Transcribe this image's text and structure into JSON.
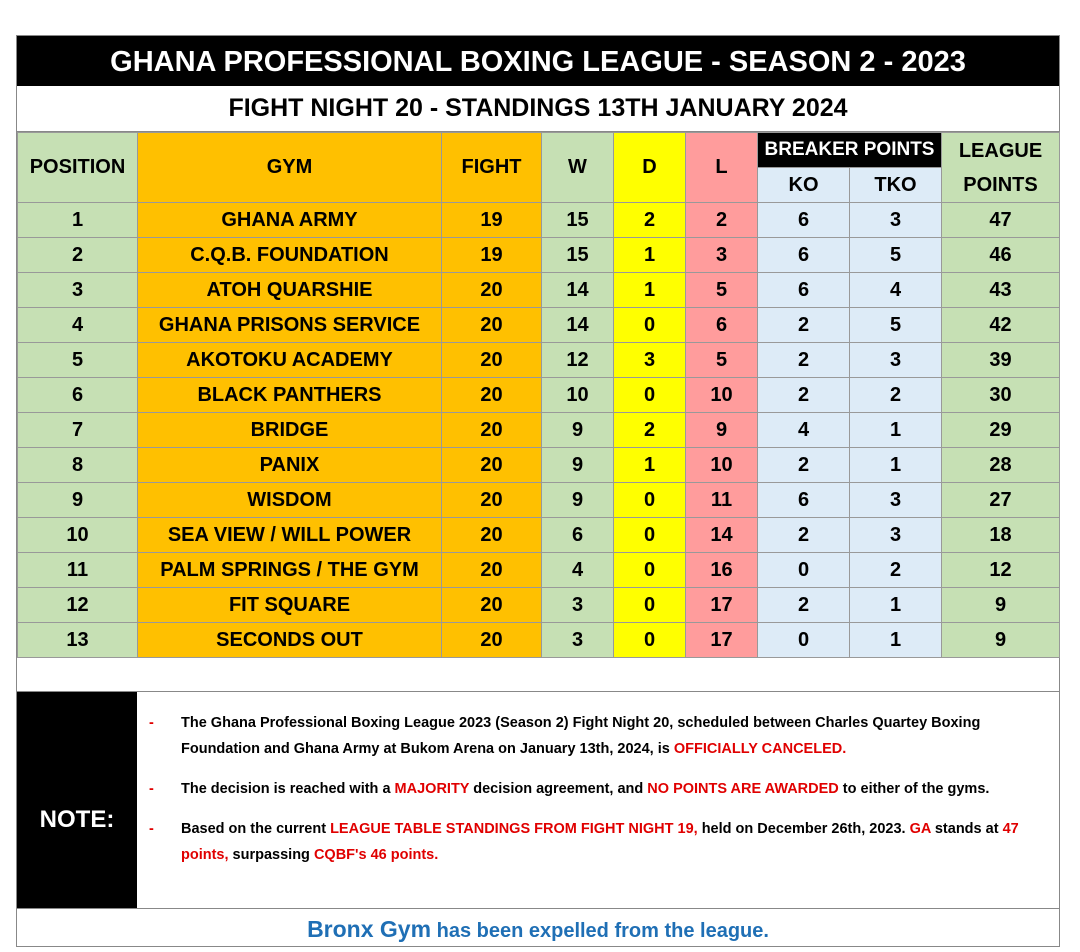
{
  "header": {
    "title": "GHANA PROFESSIONAL BOXING LEAGUE - SEASON 2 - 2023",
    "subtitle": "FIGHT NIGHT 20 - STANDINGS 13TH JANUARY 2024"
  },
  "table": {
    "columns": {
      "position": "POSITION",
      "gym": "GYM",
      "fight": "FIGHT",
      "w": "W",
      "d": "D",
      "l": "L",
      "breaker": "BREAKER POINTS",
      "ko": "KO",
      "tko": "TKO",
      "league": "LEAGUE POINTS"
    },
    "rows": [
      [
        1,
        "GHANA ARMY",
        19,
        15,
        2,
        2,
        6,
        3,
        47
      ],
      [
        2,
        "C.Q.B. FOUNDATION",
        19,
        15,
        1,
        3,
        6,
        5,
        46
      ],
      [
        3,
        "ATOH QUARSHIE",
        20,
        14,
        1,
        5,
        6,
        4,
        43
      ],
      [
        4,
        "GHANA PRISONS SERVICE",
        20,
        14,
        0,
        6,
        2,
        5,
        42
      ],
      [
        5,
        "AKOTOKU ACADEMY",
        20,
        12,
        3,
        5,
        2,
        3,
        39
      ],
      [
        6,
        "BLACK PANTHERS",
        20,
        10,
        0,
        10,
        2,
        2,
        30
      ],
      [
        7,
        "BRIDGE",
        20,
        9,
        2,
        9,
        4,
        1,
        29
      ],
      [
        8,
        "PANIX",
        20,
        9,
        1,
        10,
        2,
        1,
        28
      ],
      [
        9,
        "WISDOM",
        20,
        9,
        0,
        11,
        6,
        3,
        27
      ],
      [
        10,
        "SEA VIEW / WILL POWER",
        20,
        6,
        0,
        14,
        2,
        3,
        18
      ],
      [
        11,
        "PALM SPRINGS / THE GYM",
        20,
        4,
        0,
        16,
        0,
        2,
        12
      ],
      [
        12,
        "FIT SQUARE",
        20,
        3,
        0,
        17,
        2,
        1,
        9
      ],
      [
        13,
        "SECONDS OUT",
        20,
        3,
        0,
        17,
        0,
        1,
        9
      ]
    ]
  },
  "note": {
    "label": "NOTE:",
    "items": [
      [
        {
          "text": "The Ghana Professional Boxing League 2023 (Season 2) Fight Night 20, scheduled between Charles Quartey Boxing Foundation and Ghana Army at Bukom Arena on January 13th, 2024, is ",
          "color": "#000000"
        },
        {
          "text": "OFFICIALLY CANCELED.",
          "color": "#e00000"
        }
      ],
      [
        {
          "text": "The decision is reached with a ",
          "color": "#000000"
        },
        {
          "text": "MAJORITY",
          "color": "#e00000"
        },
        {
          "text": " decision agreement, and ",
          "color": "#000000"
        },
        {
          "text": "NO POINTS ARE AWARDED",
          "color": "#e00000"
        },
        {
          "text": " to either of the gyms.",
          "color": "#000000"
        }
      ],
      [
        {
          "text": "Based on the current ",
          "color": "#000000"
        },
        {
          "text": "LEAGUE TABLE STANDINGS FROM FIGHT NIGHT 19,",
          "color": "#e00000"
        },
        {
          "text": " held on December 26th, 2023. ",
          "color": "#000000"
        },
        {
          "text": "GA",
          "color": "#e00000"
        },
        {
          "text": " stands at ",
          "color": "#000000"
        },
        {
          "text": "47 points,",
          "color": "#e00000"
        },
        {
          "text": " surpassing ",
          "color": "#000000"
        },
        {
          "text": "CQBF's 46 points.",
          "color": "#e00000"
        }
      ]
    ]
  },
  "footer": [
    {
      "text": "Bronx Gym",
      "color": "#1f6fb5"
    },
    {
      "text": " has been expelled from the league.",
      "color": "#1f6fb5"
    }
  ]
}
